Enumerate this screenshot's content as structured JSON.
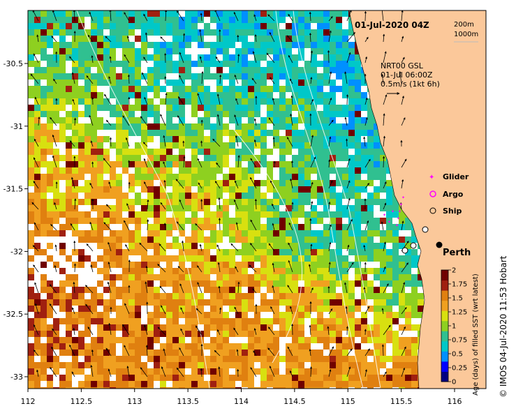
{
  "title": "01-Jul-2020 04Z",
  "depth_legend": [
    "200m",
    "1000m"
  ],
  "current_info": {
    "line1": "NRT00 GSL",
    "line2": "01-Jul 06:00Z",
    "line3": "0.5m/s (1kt 6h)"
  },
  "platform_legend": [
    {
      "label": "Glider",
      "symbol": "cross",
      "color": "#ff00ff"
    },
    {
      "label": "Argo",
      "symbol": "star-circle",
      "color": "#ff00ff"
    },
    {
      "label": "Ship",
      "symbol": "circle",
      "color": "#000000"
    }
  ],
  "city": {
    "label": "Perth",
    "lon": 115.86,
    "lat": -31.95
  },
  "axes": {
    "x_ticks": [
      "112",
      "112.5",
      "113",
      "113.5",
      "114",
      "114.5",
      "115",
      "115.5",
      "116"
    ],
    "y_ticks": [
      "-30.5",
      "-31",
      "-31.5",
      "-32",
      "-32.5",
      "-33"
    ],
    "lon_range": [
      112,
      116.1
    ],
    "lat_range": [
      -33.15,
      -30.0
    ]
  },
  "colorbar": {
    "label": "Age (days) of filled SST (wrt latest)",
    "ticks": [
      "0",
      "0.25",
      "0.5",
      "0.75",
      "1",
      "1.25",
      "1.5",
      "1.75",
      "2"
    ],
    "colors": [
      "#000080",
      "#0000ff",
      "#0090ff",
      "#00c8c8",
      "#30c090",
      "#8ed020",
      "#d8e010",
      "#f0a020",
      "#e08010",
      "#a02010",
      "#700000"
    ]
  },
  "credit": "© IMOS 04-Jul-2020 11:53 Hobart",
  "colors": {
    "land": "#fbc89a",
    "ocean_blank": "#ffffff"
  }
}
